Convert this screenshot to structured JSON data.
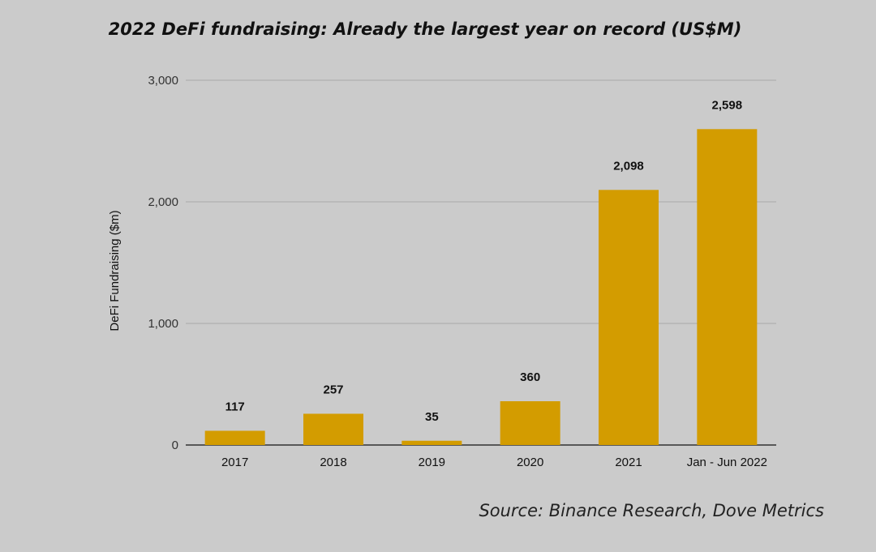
{
  "title": "2022 DeFi fundraising: Already the largest year on record (US$M)",
  "source": "Source: Binance Research, Dove Metrics",
  "colors": {
    "bar": "#d39c00",
    "background": "#cbcbcb",
    "gridline": "#a8a8a8",
    "axis": "#333333"
  },
  "chart_data": {
    "type": "bar",
    "categories": [
      "2017",
      "2018",
      "2019",
      "2020",
      "2021",
      "Jan - Jun 2022"
    ],
    "values": [
      117,
      257,
      35,
      360,
      2098,
      2598
    ],
    "data_labels": [
      "117",
      "257",
      "35",
      "360",
      "2,098",
      "2,598"
    ],
    "title": "2022 DeFi fundraising: Already the largest year on record (US$M)",
    "xlabel": "",
    "ylabel": "DeFi Fundraising ($m)",
    "ylim": [
      0,
      3000
    ],
    "yticks": [
      0,
      1000,
      2000,
      3000
    ],
    "ytick_labels": [
      "0",
      "1,000",
      "2,000",
      "3,000"
    ],
    "grid": true,
    "legend": "none"
  }
}
